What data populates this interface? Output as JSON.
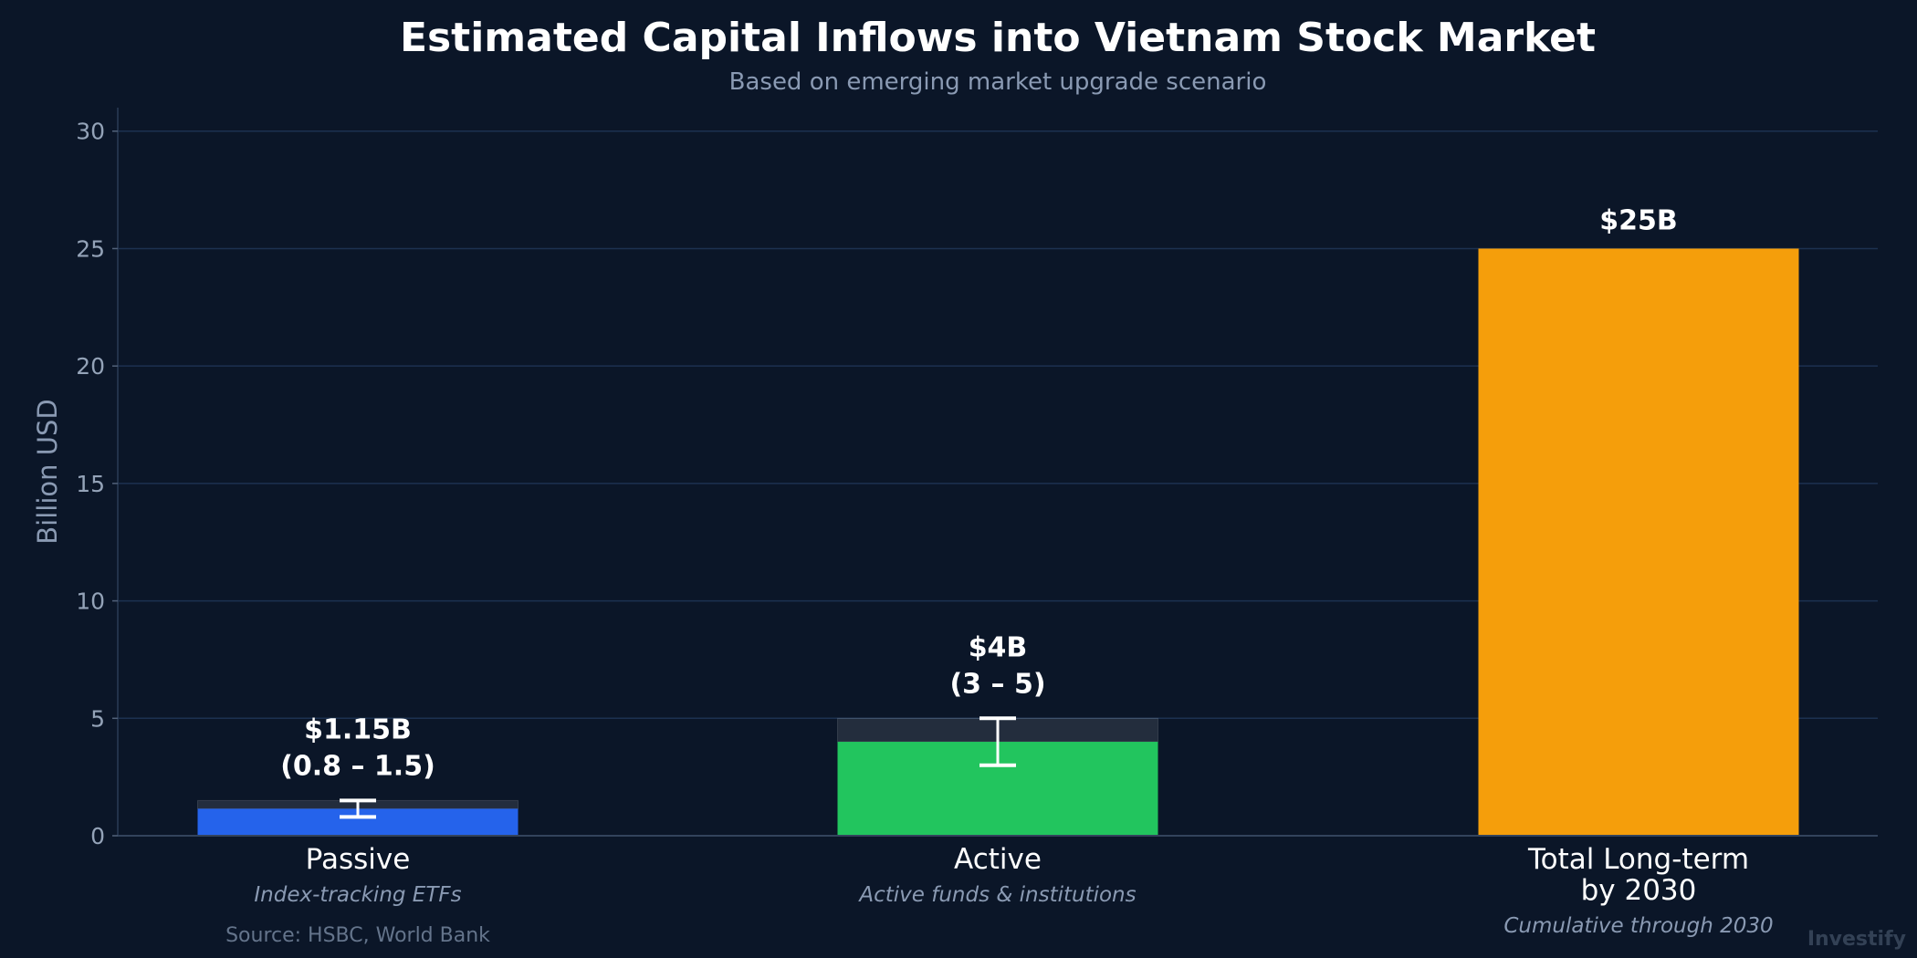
{
  "chart_data": {
    "type": "bar",
    "title": "Estimated Capital Inflows into Vietnam Stock Market",
    "subtitle": "Based on emerging market upgrade scenario",
    "ylabel": "Billion USD",
    "xlabel": "",
    "ylim": [
      0,
      31
    ],
    "yticks": [
      "0",
      "5",
      "10",
      "15",
      "20",
      "25",
      "30"
    ],
    "grid": true,
    "categories": [
      "Passive",
      "Active",
      "Total Long-term\nby 2030"
    ],
    "category_subtitles": [
      "Index-tracking ETFs",
      "Active funds & institutions",
      "Cumulative through 2030"
    ],
    "values": [
      1.15,
      4,
      25
    ],
    "ranges": [
      [
        0.8,
        1.5
      ],
      [
        3,
        5
      ],
      null
    ],
    "value_labels": [
      "$1.15B",
      "$4B",
      "$25B"
    ],
    "range_labels": [
      "(0.8 – 1.5)",
      "(3 – 5)",
      ""
    ],
    "colors": [
      "#2563eb",
      "#22c55e",
      "#f59e0b"
    ],
    "source": "Source: HSBC, World Bank",
    "brand": "Investify"
  }
}
